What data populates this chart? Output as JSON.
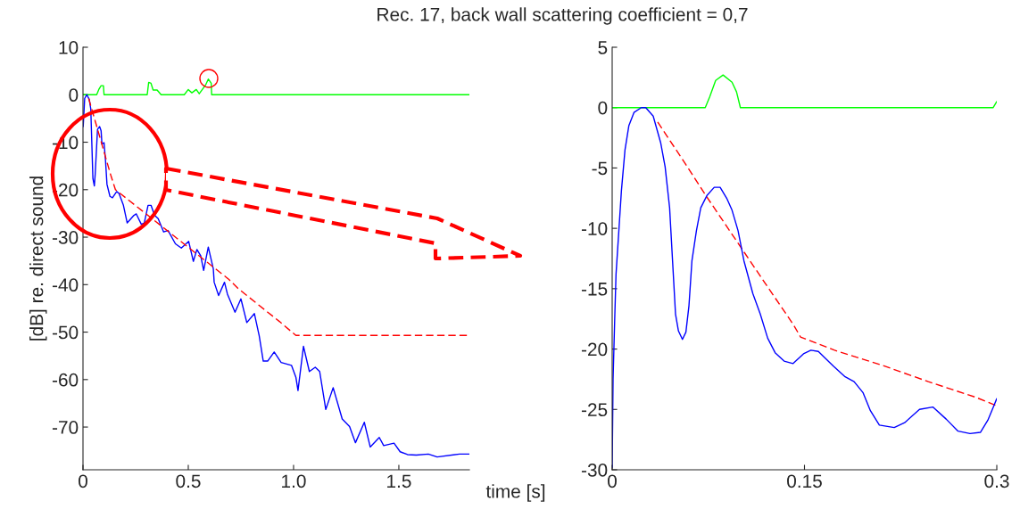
{
  "chart_data": [
    {
      "type": "line",
      "title": "Rec. 17, back wall scattering coefficient = 0,7",
      "xlabel": "time [s]",
      "ylabel": "[dB] re. direct sound",
      "xlim": [
        0,
        1.835
      ],
      "xticks": [
        0,
        0.5,
        {
          "value": 1,
          "label": "1.0"
        },
        1.5
      ],
      "ylim": [
        -79,
        10
      ],
      "yticks": [
        -70,
        -60,
        -50,
        -40,
        -30,
        -20,
        -10,
        0,
        10
      ],
      "grid": false,
      "legend": false,
      "series": [
        {
          "color": "#00ff00",
          "line_style": "solid",
          "x": [
            0.001,
            0.065,
            0.075,
            0.086,
            0.097,
            0.1,
            0.305,
            0.312,
            0.323,
            0.333,
            0.352,
            0.371,
            0.481,
            0.5,
            0.517,
            0.538,
            0.552,
            0.583,
            0.595,
            0.609,
            0.611,
            1.835
          ],
          "values": [
            0,
            0,
            1.1,
            1.9,
            1.9,
            0,
            0,
            2.6,
            2.4,
            1,
            1,
            0,
            0,
            1.1,
            0.4,
            1.1,
            0.2,
            2.1,
            3.3,
            2.4,
            0,
            0
          ]
        },
        {
          "color": "#0000ff",
          "line_style": "solid",
          "x": [
            0.001,
            0.008,
            0.018,
            0.03,
            0.037,
            0.047,
            0.054,
            0.058,
            0.069,
            0.079,
            0.086,
            0.09,
            0.1,
            0.107,
            0.114,
            0.128,
            0.14,
            0.16,
            0.171,
            0.192,
            0.21,
            0.242,
            0.253,
            0.277,
            0.291,
            0.309,
            0.323,
            0.34,
            0.357,
            0.383,
            0.404,
            0.439,
            0.467,
            0.502,
            0.524,
            0.541,
            0.559,
            0.573,
            0.595,
            0.619,
            0.623,
            0.644,
            0.672,
            0.686,
            0.722,
            0.75,
            0.778,
            0.814,
            0.837,
            0.856,
            0.877,
            0.908,
            0.941,
            0.99,
            1.011,
            1.021,
            1.047,
            1.075,
            1.103,
            1.124,
            1.153,
            1.188,
            1.231,
            1.266,
            1.294,
            1.336,
            1.364,
            1.407,
            1.428,
            1.477,
            1.506,
            1.541,
            1.583,
            1.64,
            1.682,
            1.788,
            1.835
          ],
          "values": [
            -6.7,
            -0.8,
            0,
            -1,
            -3,
            -17.6,
            -19.2,
            -16.7,
            -7.3,
            -6.7,
            -7.6,
            -10.4,
            -10.1,
            -13.9,
            -18.9,
            -21.4,
            -21.7,
            -20.4,
            -20.8,
            -23.3,
            -27,
            -25.4,
            -25.1,
            -27.3,
            -27,
            -23.3,
            -23.3,
            -25.4,
            -26.1,
            -28.9,
            -28.6,
            -31.4,
            -32.3,
            -30.9,
            -35.1,
            -32.6,
            -33.9,
            -37,
            -32.1,
            -36.7,
            -39.5,
            -42.3,
            -39.5,
            -42,
            -45.8,
            -43,
            -48,
            -46.1,
            -50.8,
            -56.1,
            -56.1,
            -54.2,
            -56.4,
            -57,
            -59.5,
            -62.3,
            -53,
            -58.3,
            -57.4,
            -58.3,
            -66.3,
            -61.7,
            -68.3,
            -69.9,
            -73.3,
            -69,
            -74.2,
            -72.2,
            -73.9,
            -73.4,
            -75.2,
            -75.8,
            -75.9,
            -75.7,
            -76.3,
            -75.7,
            -75.7
          ]
        },
        {
          "color": "#ff0000",
          "line_style": "dashed",
          "x": [
            0.027,
            0.133,
            0.154,
            0.693,
            0.736,
            0.877,
            0.934,
            1.011,
            1.835
          ],
          "values": [
            -0.8,
            -17.1,
            -20,
            -38.9,
            -40.8,
            -45.8,
            -47.8,
            -50.7,
            -50.7
          ]
        }
      ]
    },
    {
      "type": "line",
      "xlim": [
        0,
        0.3
      ],
      "xticks": [
        0,
        0.15,
        0.3
      ],
      "ylim": [
        -30,
        5
      ],
      "yticks": [
        -30,
        -25,
        -20,
        -15,
        -10,
        -5,
        0,
        5
      ],
      "grid": false,
      "legend": false,
      "series": [
        {
          "color": "#00ff00",
          "line_style": "solid",
          "x": [
            0,
            0.0726,
            0.0761,
            0.0807,
            0.0865,
            0.0935,
            0.097,
            0.1,
            0.2972,
            0.3
          ],
          "values": [
            0,
            0,
            0.9,
            2.25,
            2.7,
            2.1,
            1.3,
            0,
            0,
            0.5
          ]
        },
        {
          "color": "#ff0000",
          "line_style": "dashed",
          "x": [
            0.0355,
            0.058,
            0.0738,
            0.119,
            0.1415,
            0.1469,
            0.1735,
            0.2095,
            0.2466,
            0.2837,
            0.3
          ],
          "values": [
            -1.2,
            -4.8,
            -7.4,
            -14.5,
            -18.0,
            -19.0,
            -20.1,
            -21.3,
            -22.7,
            -24.0,
            -24.7
          ]
        },
        {
          "color": "#0000ff",
          "line_style": "solid",
          "x": [
            0,
            0.0007,
            0.0019,
            0.003,
            0.0049,
            0.0072,
            0.01,
            0.013,
            0.017,
            0.0227,
            0.0262,
            0.032,
            0.0378,
            0.0413,
            0.0448,
            0.0471,
            0.0494,
            0.0517,
            0.0548,
            0.0575,
            0.0599,
            0.0622,
            0.0657,
            0.0691,
            0.0738,
            0.0796,
            0.0842,
            0.0893,
            0.0935,
            0.0982,
            0.1028,
            0.1097,
            0.1155,
            0.1213,
            0.1271,
            0.1341,
            0.1411,
            0.1492,
            0.155,
            0.1608,
            0.1724,
            0.1817,
            0.1887,
            0.1956,
            0.2014,
            0.2084,
            0.22,
            0.2281,
            0.2397,
            0.2501,
            0.2605,
            0.2698,
            0.2791,
            0.2872,
            0.293,
            0.2977,
            0.3
          ],
          "values": [
            -29.8,
            -22.5,
            -17.8,
            -13.8,
            -10.7,
            -6.9,
            -3.5,
            -1.5,
            -0.4,
            0,
            0,
            -0.7,
            -2.9,
            -4.9,
            -8.3,
            -12.7,
            -17.1,
            -18.5,
            -19.2,
            -18.6,
            -16.4,
            -12.7,
            -10.2,
            -8.3,
            -7.3,
            -6.6,
            -6.6,
            -7.5,
            -8.5,
            -10.2,
            -12.7,
            -15.4,
            -17.1,
            -19.1,
            -20.3,
            -21.0,
            -21.2,
            -20.4,
            -20.1,
            -20.2,
            -21.4,
            -22.3,
            -22.7,
            -23.6,
            -25.1,
            -26.3,
            -26.5,
            -26.1,
            -25.0,
            -24.8,
            -25.8,
            -26.8,
            -27.0,
            -26.9,
            -25.9,
            -24.7,
            -24.1
          ]
        }
      ]
    }
  ]
}
